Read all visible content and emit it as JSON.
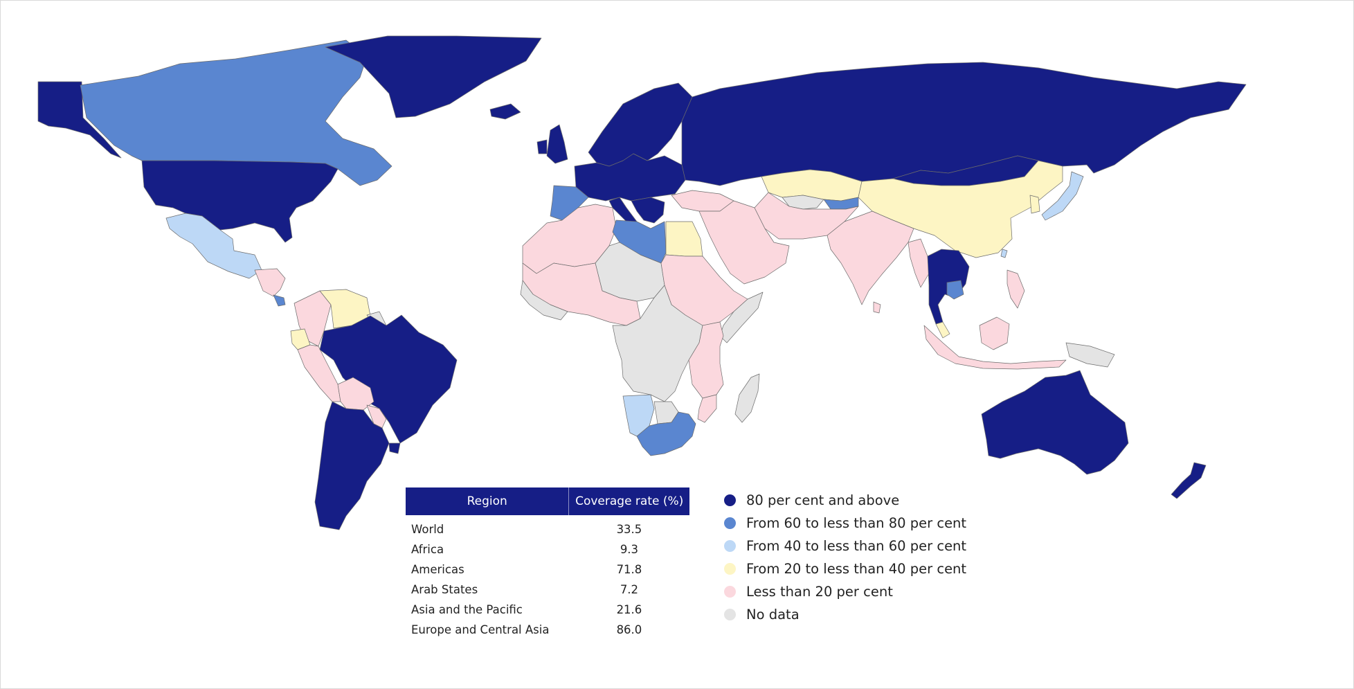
{
  "colors": {
    "c80": "#161e86",
    "c60": "#5a86d0",
    "c40": "#bdd8f6",
    "c20": "#fdf5c4",
    "c0": "#fbd8de",
    "nodata": "#e4e4e4",
    "border": "#6b6b6b",
    "header": "#161e86"
  },
  "legend": [
    {
      "label": "80 per cent and above",
      "color": "#161e86"
    },
    {
      "label": "From 60 to less than 80 per cent",
      "color": "#5a86d0"
    },
    {
      "label": "From 40 to less than 60 per cent",
      "color": "#bdd8f6"
    },
    {
      "label": "From 20 to less than 40 per cent",
      "color": "#fdf5c4"
    },
    {
      "label": "Less than 20 per cent",
      "color": "#fbd8de"
    },
    {
      "label": "No data",
      "color": "#e4e4e4"
    }
  ],
  "table": {
    "headers": {
      "region": "Region",
      "rate": "Coverage rate (%)"
    },
    "rows": [
      {
        "region": "World",
        "rate": "33.5"
      },
      {
        "region": "Africa",
        "rate": "9.3"
      },
      {
        "region": "Americas",
        "rate": "71.8"
      },
      {
        "region": "Arab States",
        "rate": "7.2"
      },
      {
        "region": "Asia and the Pacific",
        "rate": "21.6"
      },
      {
        "region": "Europe and Central Asia",
        "rate": "86.0"
      }
    ]
  },
  "map": {
    "countries": [
      {
        "name": "Alaska",
        "category": "c80"
      },
      {
        "name": "Canada",
        "category": "c60"
      },
      {
        "name": "Greenland",
        "category": "c80"
      },
      {
        "name": "United States",
        "category": "c80"
      },
      {
        "name": "Mexico",
        "category": "c40"
      },
      {
        "name": "Central America",
        "category": "c0"
      },
      {
        "name": "Costa Rica",
        "category": "c60"
      },
      {
        "name": "Colombia",
        "category": "c0"
      },
      {
        "name": "Venezuela",
        "category": "c20"
      },
      {
        "name": "Guianas",
        "category": "nodata"
      },
      {
        "name": "Ecuador",
        "category": "c20"
      },
      {
        "name": "Peru",
        "category": "c0"
      },
      {
        "name": "Brazil",
        "category": "c80"
      },
      {
        "name": "Bolivia",
        "category": "c0"
      },
      {
        "name": "Paraguay",
        "category": "c0"
      },
      {
        "name": "Argentina and Chile",
        "category": "c80"
      },
      {
        "name": "Uruguay",
        "category": "c80"
      },
      {
        "name": "Iceland",
        "category": "c80"
      },
      {
        "name": "United Kingdom",
        "category": "c80"
      },
      {
        "name": "Ireland",
        "category": "c80"
      },
      {
        "name": "Scandinavia",
        "category": "c80"
      },
      {
        "name": "Europe",
        "category": "c80"
      },
      {
        "name": "Italy",
        "category": "c80"
      },
      {
        "name": "Balkans",
        "category": "c80"
      },
      {
        "name": "Iberia",
        "category": "c60"
      },
      {
        "name": "Russia",
        "category": "c80"
      },
      {
        "name": "Kazakhstan",
        "category": "c20"
      },
      {
        "name": "Uzbekistan",
        "category": "nodata"
      },
      {
        "name": "Central Asia East",
        "category": "c60"
      },
      {
        "name": "Turkey",
        "category": "c0"
      },
      {
        "name": "Mongolia",
        "category": "c80"
      },
      {
        "name": "China",
        "category": "c20"
      },
      {
        "name": "Korea",
        "category": "c20"
      },
      {
        "name": "Japan",
        "category": "c40"
      },
      {
        "name": "Taiwan",
        "category": "c40"
      },
      {
        "name": "Middle East",
        "category": "c0"
      },
      {
        "name": "Iran and Afghanistan",
        "category": "c0"
      },
      {
        "name": "India",
        "category": "c0"
      },
      {
        "name": "Sri Lanka",
        "category": "c0"
      },
      {
        "name": "Myanmar",
        "category": "c0"
      },
      {
        "name": "Thailand and Indochina",
        "category": "c80"
      },
      {
        "name": "Cambodia",
        "category": "c60"
      },
      {
        "name": "Malaysia",
        "category": "c20"
      },
      {
        "name": "Indonesia",
        "category": "c0"
      },
      {
        "name": "Borneo",
        "category": "c0"
      },
      {
        "name": "Philippines",
        "category": "c0"
      },
      {
        "name": "Papua New Guinea",
        "category": "nodata"
      },
      {
        "name": "North Africa West",
        "category": "c0"
      },
      {
        "name": "Libya",
        "category": "c60"
      },
      {
        "name": "Egypt",
        "category": "c20"
      },
      {
        "name": "Sahel",
        "category": "nodata"
      },
      {
        "name": "West Africa",
        "category": "c0"
      },
      {
        "name": "West Africa Coast",
        "category": "nodata"
      },
      {
        "name": "Sudan and Ethiopia",
        "category": "c0"
      },
      {
        "name": "Somalia",
        "category": "nodata"
      },
      {
        "name": "Central Africa",
        "category": "nodata"
      },
      {
        "name": "East Africa",
        "category": "c0"
      },
      {
        "name": "Namibia",
        "category": "c40"
      },
      {
        "name": "Botswana",
        "category": "nodata"
      },
      {
        "name": "Mozambique",
        "category": "c0"
      },
      {
        "name": "South Africa",
        "category": "c60"
      },
      {
        "name": "Madagascar",
        "category": "nodata"
      },
      {
        "name": "Australia",
        "category": "c80"
      },
      {
        "name": "New Zealand",
        "category": "c80"
      }
    ]
  }
}
